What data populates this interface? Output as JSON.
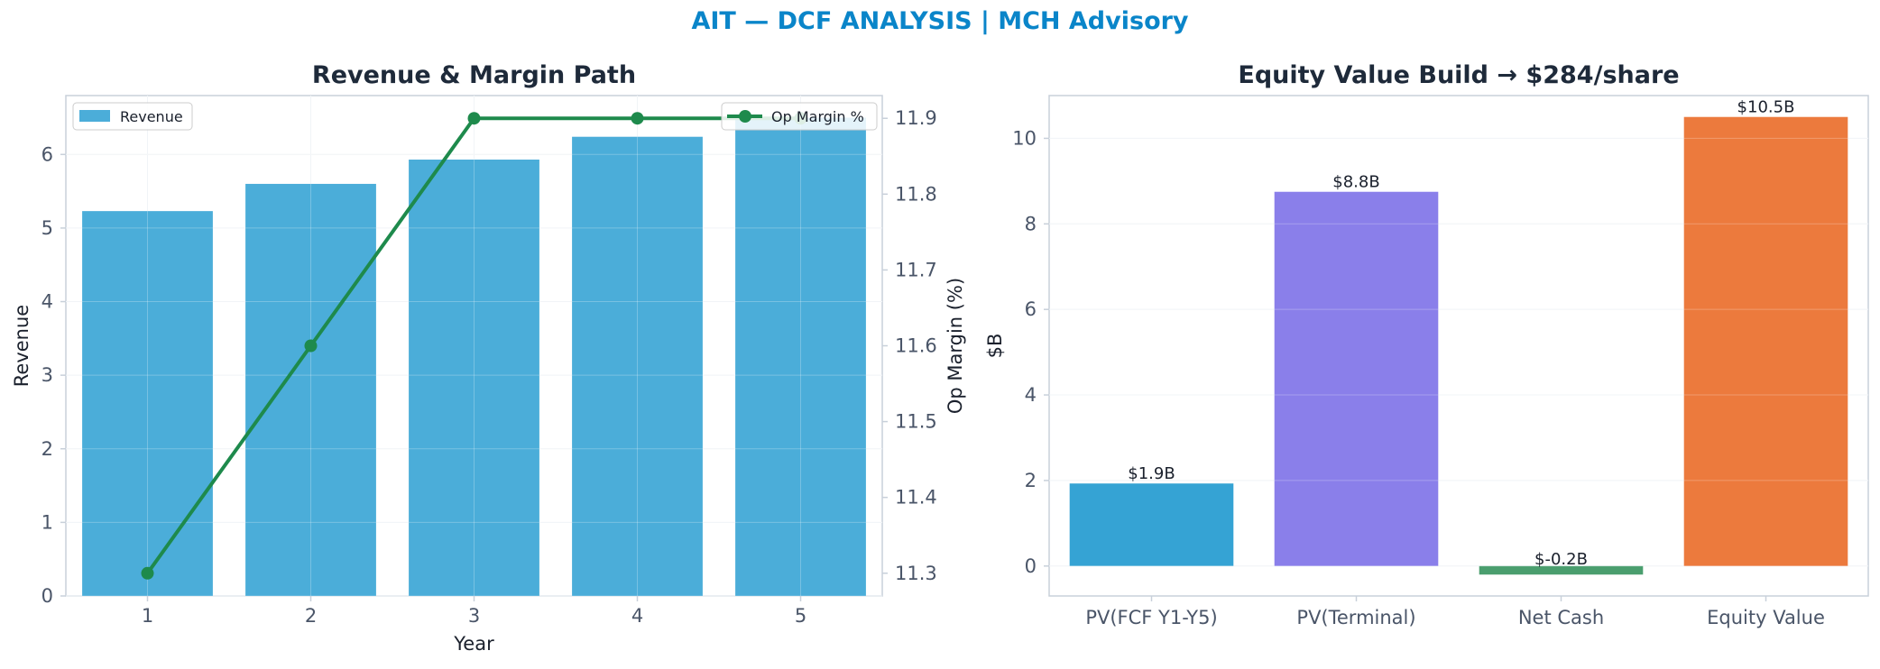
{
  "figure": {
    "title": "AIT — DCF ANALYSIS | MCH Advisory",
    "title_color": "#0a85c9"
  },
  "chart_data": [
    {
      "type": "bar",
      "title": "Revenue & Margin Path",
      "xlabel": "Year",
      "ylabel": "Revenue",
      "y2label": "Op Margin (%)",
      "categories": [
        "1",
        "2",
        "3",
        "4",
        "5"
      ],
      "ylim": [
        0,
        6.8
      ],
      "yticks": [
        0,
        1,
        2,
        3,
        4,
        5,
        6
      ],
      "y2lim": [
        11.27,
        11.93
      ],
      "y2ticks": [
        11.3,
        11.4,
        11.5,
        11.6,
        11.7,
        11.8,
        11.9
      ],
      "grid": true,
      "series": [
        {
          "name": "Revenue",
          "type": "bar",
          "axis": "left",
          "color": "#4badd9",
          "values": [
            5.23,
            5.6,
            5.93,
            6.24,
            6.5
          ]
        },
        {
          "name": "Op Margin %",
          "type": "line",
          "axis": "right",
          "color": "#1e8a4c",
          "values": [
            11.3,
            11.6,
            11.9,
            11.9,
            11.9
          ]
        }
      ],
      "legend": {
        "revenue_position": "top-left",
        "margin_position": "top-right"
      }
    },
    {
      "type": "bar",
      "title": "Equity Value Build → $284/share",
      "xlabel": "",
      "ylabel": "$B",
      "categories": [
        "PV(FCF Y1-Y5)",
        "PV(Terminal)",
        "Net Cash",
        "Equity Value"
      ],
      "values": [
        1.93,
        8.75,
        -0.2,
        10.5
      ],
      "data_labels": [
        "$1.9B",
        "$8.8B",
        "$-0.2B",
        "$10.5B"
      ],
      "colors": [
        "#35a3d4",
        "#8a7fea",
        "#4a9e6e",
        "#ec7a3d"
      ],
      "ylim": [
        -0.7,
        11
      ],
      "yticks": [
        0,
        2,
        4,
        6,
        8,
        10
      ],
      "grid": true
    }
  ]
}
